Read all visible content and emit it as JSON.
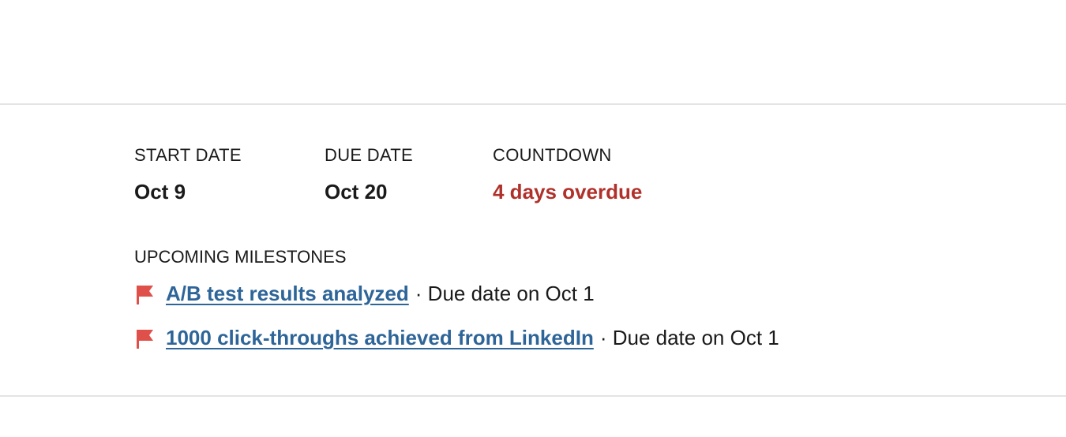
{
  "fields": [
    {
      "label": "START DATE",
      "value": "Oct 9"
    },
    {
      "label": "DUE DATE",
      "value": "Oct 20"
    },
    {
      "label": "COUNTDOWN",
      "value": "4 days overdue"
    }
  ],
  "milestones": {
    "title": "UPCOMING MILESTONES",
    "items": [
      {
        "name": "A/B test results analyzed",
        "due": "· Due date on Oct 1"
      },
      {
        "name": "1000 click-throughs achieved from LinkedIn",
        "due": "· Due date on Oct 1"
      }
    ]
  },
  "colors": {
    "overdue": "#b0312b",
    "link": "#2e6598",
    "flag": "#e0504a"
  }
}
